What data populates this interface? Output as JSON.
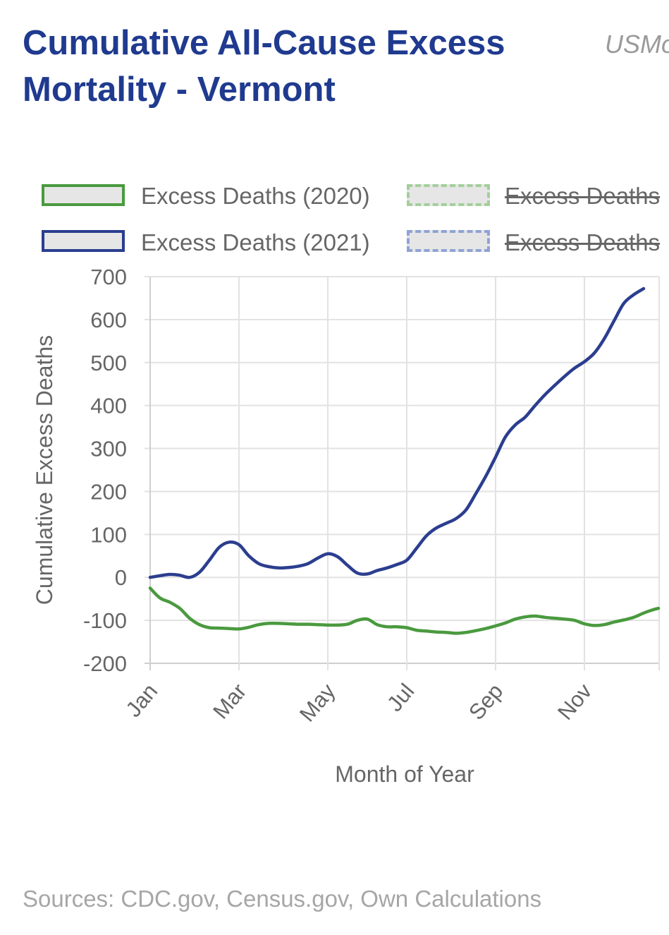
{
  "header": {
    "title": "Cumulative All-Cause Excess Mortality - Vermont",
    "watermark": "USMo"
  },
  "footer": {
    "source": "Sources: CDC.gov, Census.gov, Own Calculations"
  },
  "chart_data": {
    "type": "line",
    "title": "Cumulative All-Cause Excess Mortality - Vermont",
    "xlabel": "Month of Year",
    "ylabel": "Cumulative Excess Deaths",
    "xlim": [
      0,
      51.5
    ],
    "ylim": [
      -200,
      700
    ],
    "grid": true,
    "legend_position": "top",
    "x_unit": "week",
    "x_ticks": [
      {
        "label": "Jan",
        "week": 0
      },
      {
        "label": "Mar",
        "week": 9
      },
      {
        "label": "May",
        "week": 18
      },
      {
        "label": "Jul",
        "week": 26
      },
      {
        "label": "Sep",
        "week": 35
      },
      {
        "label": "Nov",
        "week": 44
      }
    ],
    "y_ticks": [
      700,
      600,
      500,
      400,
      300,
      200,
      100,
      0,
      -100,
      -200
    ],
    "series": [
      {
        "name": "Excess Deaths (2020)",
        "color": "#4a9a3f",
        "visible": true,
        "style": "solid",
        "points": [
          [
            0,
            -25
          ],
          [
            1,
            -48
          ],
          [
            2,
            -58
          ],
          [
            3,
            -72
          ],
          [
            4,
            -95
          ],
          [
            5,
            -110
          ],
          [
            6,
            -117
          ],
          [
            7,
            -118
          ],
          [
            8,
            -119
          ],
          [
            9,
            -120
          ],
          [
            10,
            -116
          ],
          [
            11,
            -110
          ],
          [
            12,
            -107
          ],
          [
            13,
            -107
          ],
          [
            14,
            -108
          ],
          [
            15,
            -109
          ],
          [
            16,
            -109
          ],
          [
            17,
            -110
          ],
          [
            18,
            -111
          ],
          [
            19,
            -111
          ],
          [
            20,
            -109
          ],
          [
            21,
            -100
          ],
          [
            22,
            -97
          ],
          [
            23,
            -110
          ],
          [
            24,
            -115
          ],
          [
            25,
            -115
          ],
          [
            26,
            -117
          ],
          [
            27,
            -123
          ],
          [
            28,
            -125
          ],
          [
            29,
            -127
          ],
          [
            30,
            -128
          ],
          [
            31,
            -130
          ],
          [
            32,
            -128
          ],
          [
            33,
            -124
          ],
          [
            34,
            -119
          ],
          [
            35,
            -113
          ],
          [
            36,
            -106
          ],
          [
            37,
            -97
          ],
          [
            38,
            -92
          ],
          [
            39,
            -90
          ],
          [
            40,
            -93
          ],
          [
            41,
            -95
          ],
          [
            42,
            -97
          ],
          [
            43,
            -100
          ],
          [
            44,
            -108
          ],
          [
            45,
            -112
          ],
          [
            46,
            -110
          ],
          [
            47,
            -104
          ],
          [
            48,
            -99
          ],
          [
            49,
            -93
          ],
          [
            50,
            -83
          ],
          [
            51,
            -75
          ],
          [
            51.5,
            -72
          ]
        ]
      },
      {
        "name": "Excess Deaths (2021)",
        "color": "#2b3e8f",
        "visible": true,
        "style": "solid",
        "points": [
          [
            0,
            0
          ],
          [
            1,
            4
          ],
          [
            2,
            7
          ],
          [
            3,
            5
          ],
          [
            4,
            0
          ],
          [
            5,
            12
          ],
          [
            6,
            40
          ],
          [
            7,
            70
          ],
          [
            8,
            82
          ],
          [
            9,
            76
          ],
          [
            10,
            50
          ],
          [
            11,
            32
          ],
          [
            12,
            25
          ],
          [
            13,
            22
          ],
          [
            14,
            23
          ],
          [
            15,
            26
          ],
          [
            16,
            32
          ],
          [
            17,
            45
          ],
          [
            18,
            55
          ],
          [
            19,
            48
          ],
          [
            20,
            28
          ],
          [
            21,
            10
          ],
          [
            22,
            8
          ],
          [
            23,
            16
          ],
          [
            24,
            22
          ],
          [
            25,
            30
          ],
          [
            26,
            40
          ],
          [
            27,
            68
          ],
          [
            28,
            97
          ],
          [
            29,
            115
          ],
          [
            30,
            126
          ],
          [
            31,
            137
          ],
          [
            32,
            157
          ],
          [
            33,
            195
          ],
          [
            34,
            235
          ],
          [
            35,
            280
          ],
          [
            36,
            327
          ],
          [
            37,
            355
          ],
          [
            38,
            373
          ],
          [
            39,
            400
          ],
          [
            40,
            425
          ],
          [
            41,
            447
          ],
          [
            42,
            468
          ],
          [
            43,
            487
          ],
          [
            44,
            502
          ],
          [
            45,
            522
          ],
          [
            46,
            555
          ],
          [
            47,
            597
          ],
          [
            48,
            638
          ],
          [
            49,
            658
          ],
          [
            50,
            672
          ]
        ]
      },
      {
        "name": "Excess Deaths",
        "color": "#a3cf9a",
        "visible": false,
        "style": "dashed",
        "points": []
      },
      {
        "name": "Excess Deaths",
        "color": "#8fa3d4",
        "visible": false,
        "style": "dashed",
        "points": []
      }
    ]
  }
}
